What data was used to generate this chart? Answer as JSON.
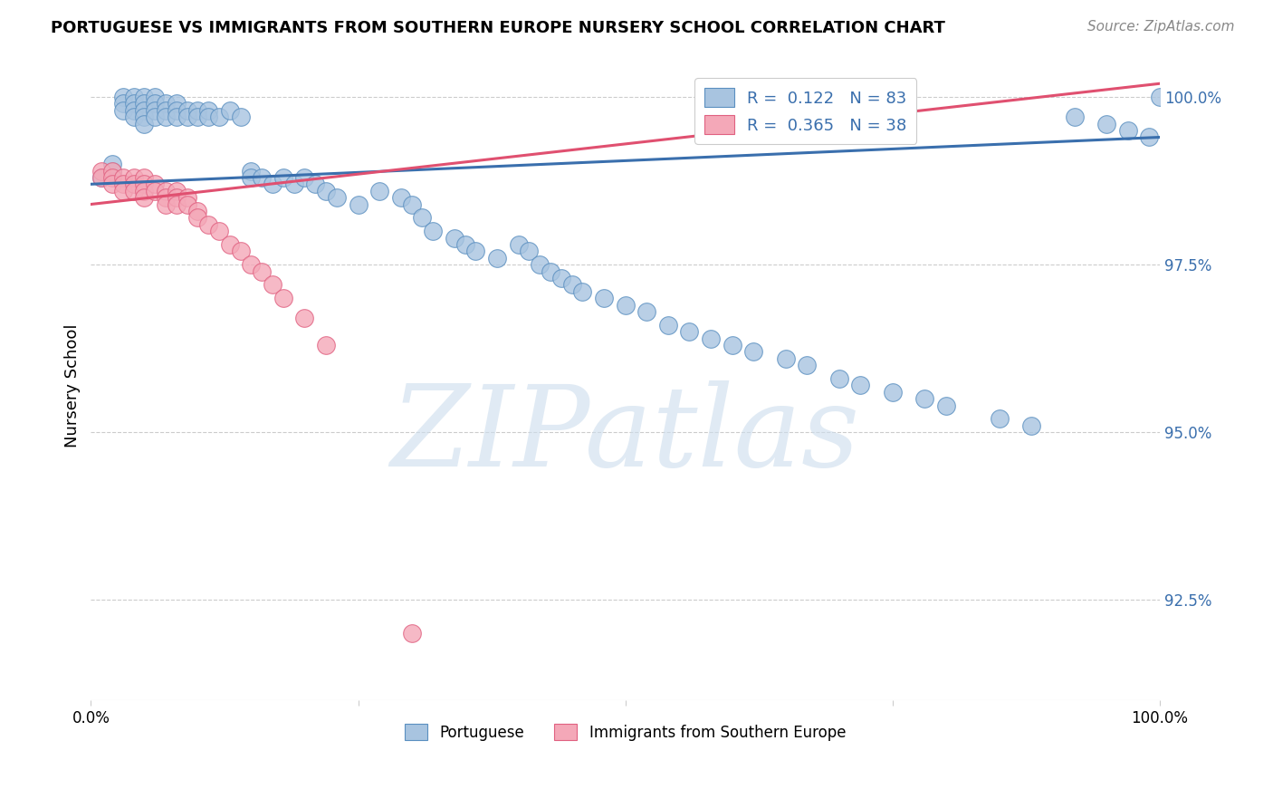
{
  "title": "PORTUGUESE VS IMMIGRANTS FROM SOUTHERN EUROPE NURSERY SCHOOL CORRELATION CHART",
  "source": "Source: ZipAtlas.com",
  "ylabel": "Nursery School",
  "xlim": [
    0.0,
    1.0
  ],
  "ylim": [
    0.91,
    1.004
  ],
  "yticks": [
    0.925,
    0.95,
    0.975,
    1.0
  ],
  "ytick_labels": [
    "92.5%",
    "95.0%",
    "97.5%",
    "100.0%"
  ],
  "xticks": [
    0.0,
    0.25,
    0.5,
    0.75,
    1.0
  ],
  "xtick_labels": [
    "0.0%",
    "",
    "",
    "",
    "100.0%"
  ],
  "blue_R": 0.122,
  "blue_N": 83,
  "pink_R": 0.365,
  "pink_N": 38,
  "blue_color": "#a8c4e0",
  "pink_color": "#f4a8b8",
  "blue_edge_color": "#5a8fc0",
  "pink_edge_color": "#e06080",
  "blue_line_color": "#3a6fad",
  "pink_line_color": "#e05070",
  "blue_label": "Portuguese",
  "pink_label": "Immigrants from Southern Europe",
  "watermark_text": "ZIPatlas",
  "blue_trend_x0": 0.0,
  "blue_trend_y0": 0.987,
  "blue_trend_x1": 1.0,
  "blue_trend_y1": 0.994,
  "pink_trend_x0": 0.0,
  "pink_trend_y0": 0.984,
  "pink_trend_x1": 1.0,
  "pink_trend_y1": 1.002,
  "blue_x": [
    0.01,
    0.02,
    0.02,
    0.03,
    0.03,
    0.03,
    0.04,
    0.04,
    0.04,
    0.04,
    0.05,
    0.05,
    0.05,
    0.05,
    0.05,
    0.06,
    0.06,
    0.06,
    0.06,
    0.07,
    0.07,
    0.07,
    0.08,
    0.08,
    0.08,
    0.09,
    0.09,
    0.1,
    0.1,
    0.11,
    0.11,
    0.12,
    0.13,
    0.14,
    0.15,
    0.15,
    0.16,
    0.17,
    0.18,
    0.19,
    0.2,
    0.21,
    0.22,
    0.23,
    0.25,
    0.27,
    0.29,
    0.3,
    0.31,
    0.32,
    0.34,
    0.35,
    0.36,
    0.38,
    0.4,
    0.41,
    0.42,
    0.43,
    0.44,
    0.45,
    0.46,
    0.48,
    0.5,
    0.52,
    0.54,
    0.56,
    0.58,
    0.6,
    0.62,
    0.65,
    0.67,
    0.7,
    0.72,
    0.75,
    0.78,
    0.8,
    0.85,
    0.88,
    0.92,
    0.95,
    0.97,
    0.99,
    1.0
  ],
  "blue_y": [
    0.988,
    0.989,
    0.99,
    1.0,
    0.999,
    0.998,
    1.0,
    0.999,
    0.998,
    0.997,
    1.0,
    0.999,
    0.998,
    0.997,
    0.996,
    1.0,
    0.999,
    0.998,
    0.997,
    0.999,
    0.998,
    0.997,
    0.999,
    0.998,
    0.997,
    0.998,
    0.997,
    0.998,
    0.997,
    0.998,
    0.997,
    0.997,
    0.998,
    0.997,
    0.989,
    0.988,
    0.988,
    0.987,
    0.988,
    0.987,
    0.988,
    0.987,
    0.986,
    0.985,
    0.984,
    0.986,
    0.985,
    0.984,
    0.982,
    0.98,
    0.979,
    0.978,
    0.977,
    0.976,
    0.978,
    0.977,
    0.975,
    0.974,
    0.973,
    0.972,
    0.971,
    0.97,
    0.969,
    0.968,
    0.966,
    0.965,
    0.964,
    0.963,
    0.962,
    0.961,
    0.96,
    0.958,
    0.957,
    0.956,
    0.955,
    0.954,
    0.952,
    0.951,
    0.997,
    0.996,
    0.995,
    0.994,
    1.0
  ],
  "pink_x": [
    0.01,
    0.01,
    0.02,
    0.02,
    0.02,
    0.03,
    0.03,
    0.03,
    0.04,
    0.04,
    0.04,
    0.05,
    0.05,
    0.05,
    0.05,
    0.06,
    0.06,
    0.07,
    0.07,
    0.07,
    0.08,
    0.08,
    0.08,
    0.09,
    0.09,
    0.1,
    0.1,
    0.11,
    0.12,
    0.13,
    0.14,
    0.15,
    0.16,
    0.17,
    0.18,
    0.2,
    0.22,
    0.3
  ],
  "pink_y": [
    0.989,
    0.988,
    0.989,
    0.988,
    0.987,
    0.988,
    0.987,
    0.986,
    0.988,
    0.987,
    0.986,
    0.988,
    0.987,
    0.986,
    0.985,
    0.987,
    0.986,
    0.986,
    0.985,
    0.984,
    0.986,
    0.985,
    0.984,
    0.985,
    0.984,
    0.983,
    0.982,
    0.981,
    0.98,
    0.978,
    0.977,
    0.975,
    0.974,
    0.972,
    0.97,
    0.967,
    0.963,
    0.92
  ]
}
